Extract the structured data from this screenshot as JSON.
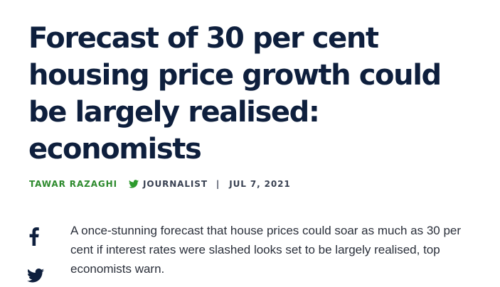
{
  "article": {
    "headline": "Forecast of 30 per cent housing price growth could be largely realised: economists",
    "author": "TAWAR RAZAGHI",
    "role": "JOURNALIST",
    "separator": "|",
    "date": "JUL 7, 2021",
    "lede": "A once-stunning forecast that house prices could soar as much as 30 per cent if interest rates were slashed looks set to be largely realised, top economists warn."
  },
  "icons": {
    "byline_social": "twitter-icon",
    "share": [
      "facebook-icon",
      "twitter-icon"
    ]
  },
  "colors": {
    "headline": "#0e1f3d",
    "author": "#2d8a2d",
    "byline": "#3a4253",
    "body": "#2a2f3a",
    "twitter_green": "#2d9b2d"
  }
}
